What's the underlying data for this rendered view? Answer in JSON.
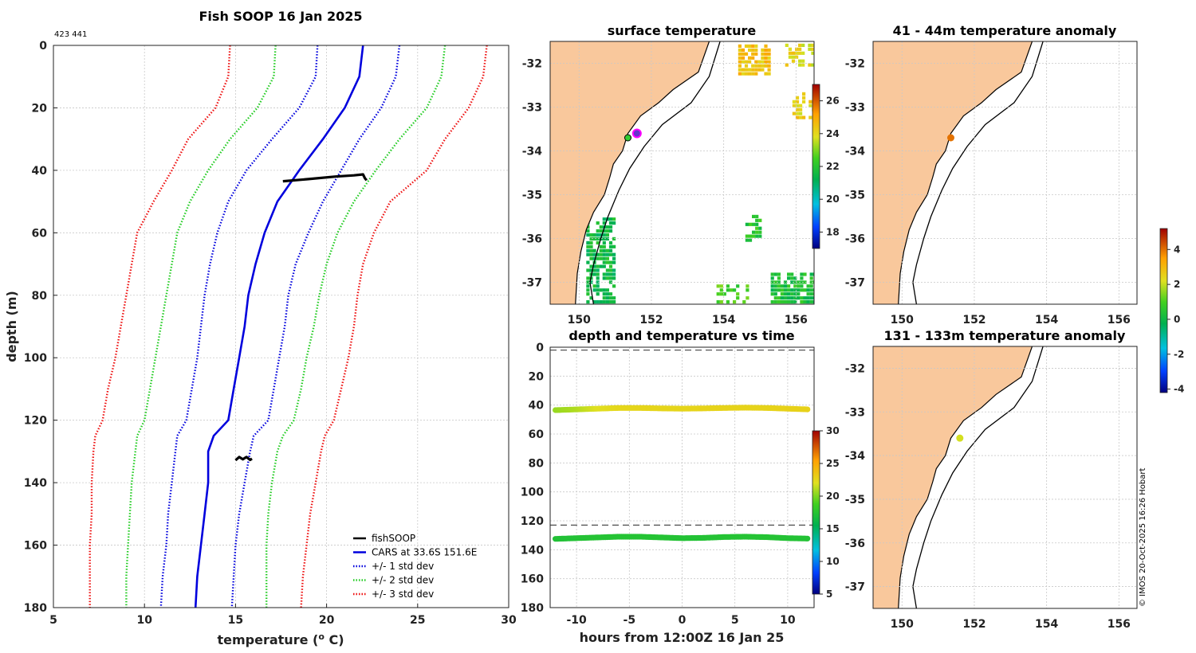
{
  "profile": {
    "title": "Fish SOOP 16 Jan 2025",
    "id_text": "423 441",
    "xlabel_pre": "temperature (",
    "xlabel_sup": "o",
    "xlabel_post": " C)",
    "ylabel": "depth (m)",
    "legend": [
      "fishSOOP",
      "CARS at 33.6S 151.6E",
      "+/- 1 std dev",
      "+/- 2 std dev",
      "+/- 3 std dev"
    ],
    "legend_colors": [
      "#000000",
      "#0000dd",
      "#0000dd",
      "#22cc22",
      "#ee1111"
    ]
  },
  "sst_map": {
    "title": "surface temperature",
    "xticks": [
      "150",
      "152",
      "154",
      "156"
    ],
    "yticks": [
      "-32",
      "-33",
      "-34",
      "-35",
      "-36",
      "-37"
    ]
  },
  "anom_map1": {
    "title": "41 - 44m temperature anomaly",
    "xticks": [
      "150",
      "152",
      "154",
      "156"
    ],
    "yticks": [
      "-32",
      "-33",
      "-34",
      "-35",
      "-36",
      "-37"
    ]
  },
  "anom_map2": {
    "title": "131 - 133m temperature anomaly",
    "xticks": [
      "150",
      "152",
      "154",
      "156"
    ],
    "yticks": [
      "-32",
      "-33",
      "-34",
      "-35",
      "-36",
      "-37"
    ]
  },
  "depth_time": {
    "title": "depth and temperature vs time",
    "xlabel": "hours from 12:00Z 16 Jan 25"
  },
  "colorbars": {
    "sst_ticks": [
      "26",
      "24",
      "22",
      "20",
      "18"
    ],
    "anom_ticks": [
      "4",
      "2",
      "0",
      "-2",
      "-4"
    ],
    "dt_ticks": [
      "30",
      "25",
      "20",
      "15",
      "10",
      "5"
    ]
  },
  "copyright": "© IMOS 20-Oct-2025 16:26 Hobart",
  "chart_data": [
    {
      "type": "line",
      "title": "Fish SOOP 16 Jan 2025",
      "xlabel": "temperature (o C)",
      "ylabel": "depth (m)",
      "xlim": [
        5,
        30
      ],
      "ylim": [
        0,
        180
      ],
      "xticks": [
        5,
        10,
        15,
        20,
        25,
        30
      ],
      "yticks": [
        0,
        20,
        40,
        60,
        80,
        100,
        120,
        140,
        160,
        180
      ],
      "y_reversed": true,
      "depths": [
        0,
        10,
        20,
        30,
        40,
        50,
        60,
        70,
        80,
        90,
        100,
        110,
        120,
        125,
        130,
        140,
        150,
        160,
        170,
        180
      ],
      "series": [
        {
          "name": "CARS at 33.6S 151.6E",
          "style": "solid",
          "color": "#0000dd",
          "temps": [
            22.0,
            21.8,
            21.0,
            19.8,
            18.5,
            17.3,
            16.6,
            16.1,
            15.7,
            15.5,
            15.2,
            14.9,
            14.6,
            13.8,
            13.5,
            13.5,
            13.3,
            13.1,
            12.9,
            12.8
          ]
        },
        {
          "name": "+/- 1 std dev (low)",
          "style": "dotted",
          "color": "#0000dd",
          "temps": [
            19.5,
            19.4,
            18.5,
            17.0,
            15.6,
            14.6,
            14.0,
            13.6,
            13.3,
            13.1,
            12.9,
            12.6,
            12.3,
            11.8,
            11.7,
            11.5,
            11.3,
            11.2,
            11.0,
            10.9
          ]
        },
        {
          "name": "+/- 1 std dev (high)",
          "style": "dotted",
          "color": "#0000dd",
          "temps": [
            24.0,
            23.8,
            23.0,
            21.8,
            20.8,
            19.8,
            19.0,
            18.3,
            17.9,
            17.7,
            17.4,
            17.1,
            16.8,
            16.0,
            15.8,
            15.5,
            15.2,
            15.0,
            14.9,
            14.8
          ]
        },
        {
          "name": "+/- 2 std dev (low)",
          "style": "dotted",
          "color": "#22cc22",
          "temps": [
            17.2,
            17.1,
            16.2,
            14.7,
            13.5,
            12.5,
            11.8,
            11.5,
            11.2,
            10.9,
            10.6,
            10.3,
            10.0,
            9.6,
            9.5,
            9.3,
            9.2,
            9.1,
            9.0,
            9.0
          ]
        },
        {
          "name": "+/- 2 std dev (high)",
          "style": "dotted",
          "color": "#22cc22",
          "temps": [
            26.5,
            26.3,
            25.5,
            24.0,
            22.7,
            21.5,
            20.6,
            20.0,
            19.6,
            19.3,
            18.9,
            18.6,
            18.2,
            17.6,
            17.3,
            17.0,
            16.8,
            16.7,
            16.7,
            16.7
          ]
        },
        {
          "name": "+/- 3 std dev (low)",
          "style": "dotted",
          "color": "#ee1111",
          "temps": [
            14.7,
            14.6,
            13.9,
            12.4,
            11.5,
            10.5,
            9.6,
            9.3,
            9.0,
            8.7,
            8.4,
            8.0,
            7.7,
            7.3,
            7.2,
            7.1,
            7.1,
            7.0,
            7.0,
            7.0
          ]
        },
        {
          "name": "+/- 3 std dev (high)",
          "style": "dotted",
          "color": "#ee1111",
          "temps": [
            28.8,
            28.6,
            27.8,
            26.5,
            25.5,
            23.5,
            22.6,
            22.0,
            21.7,
            21.5,
            21.2,
            20.8,
            20.4,
            19.9,
            19.7,
            19.4,
            19.1,
            18.9,
            18.7,
            18.6
          ]
        }
      ],
      "fishsoop_segments": [
        {
          "temps": [
            17.6,
            19.0,
            20.5,
            21.5,
            22.0,
            22.1,
            22.2
          ],
          "depths": [
            43.5,
            42.8,
            42.0,
            41.6,
            41.3,
            42.5,
            43.2
          ]
        },
        {
          "temps": [
            15.0,
            15.2,
            15.4,
            15.6,
            15.8,
            15.9
          ],
          "depths": [
            132.8,
            131.8,
            132.5,
            131.8,
            132.7,
            132.3
          ]
        }
      ]
    },
    {
      "type": "scatter",
      "title": "depth and temperature vs time",
      "xlabel": "hours from 12:00Z 16 Jan 25",
      "ylabel": "",
      "xlim": [
        -12.5,
        12.5
      ],
      "ylim": [
        0,
        180
      ],
      "xticks": [
        -10,
        -5,
        0,
        5,
        10
      ],
      "yticks": [
        0,
        20,
        40,
        60,
        80,
        100,
        120,
        140,
        160,
        180
      ],
      "y_reversed": true,
      "dashed_depths": [
        2,
        123
      ],
      "colorbar_range": [
        5,
        30
      ],
      "series": [
        {
          "name": "shallow",
          "hours": [
            -12,
            -10,
            -8,
            -6,
            -4,
            -2,
            0,
            2,
            4,
            6,
            8,
            10,
            12
          ],
          "depth": [
            43.5,
            43.0,
            42.5,
            42.0,
            42.0,
            42.3,
            42.5,
            42.3,
            42.0,
            41.8,
            42.0,
            42.5,
            43.0
          ],
          "temp": [
            20.5,
            21.0,
            22.0,
            22.5,
            22.6,
            22.6,
            22.6,
            22.7,
            22.7,
            22.7,
            22.7,
            22.8,
            22.8
          ]
        },
        {
          "name": "deep",
          "hours": [
            -12,
            -10,
            -8,
            -6,
            -4,
            -2,
            0,
            2,
            4,
            6,
            8,
            10,
            12
          ],
          "depth": [
            132.5,
            132.0,
            131.5,
            131.0,
            131.0,
            131.5,
            132.0,
            131.8,
            131.2,
            131.0,
            131.3,
            132.0,
            132.3
          ],
          "temp": [
            17.2,
            17.3,
            17.4,
            17.4,
            17.4,
            17.4,
            17.3,
            17.3,
            17.4,
            17.4,
            17.4,
            17.3,
            17.3
          ]
        }
      ]
    },
    {
      "type": "heatmap",
      "title": "surface temperature",
      "xlim": [
        149.2,
        156.5
      ],
      "ylim": [
        -37.5,
        -31.5
      ],
      "colorbar_range": [
        17,
        27
      ],
      "markers": [
        {
          "lon": 151.6,
          "lat": -33.6,
          "label": "CARS"
        },
        {
          "lon": 151.35,
          "lat": -33.7,
          "label": "fishSOOP"
        }
      ]
    },
    {
      "type": "heatmap",
      "title": "41 - 44m temperature anomaly",
      "xlim": [
        149.2,
        156.5
      ],
      "ylim": [
        -37.5,
        -31.5
      ],
      "colorbar_range": [
        -4.2,
        5.2
      ],
      "points": [
        {
          "lon": 151.35,
          "lat": -33.7,
          "anomaly": 4.0
        }
      ]
    },
    {
      "type": "heatmap",
      "title": "131 - 133m temperature anomaly",
      "xlim": [
        149.2,
        156.5
      ],
      "ylim": [
        -37.5,
        -31.5
      ],
      "colorbar_range": [
        -4.2,
        5.2
      ],
      "points": [
        {
          "lon": 151.6,
          "lat": -33.6,
          "anomaly": 2.1
        }
      ]
    }
  ]
}
